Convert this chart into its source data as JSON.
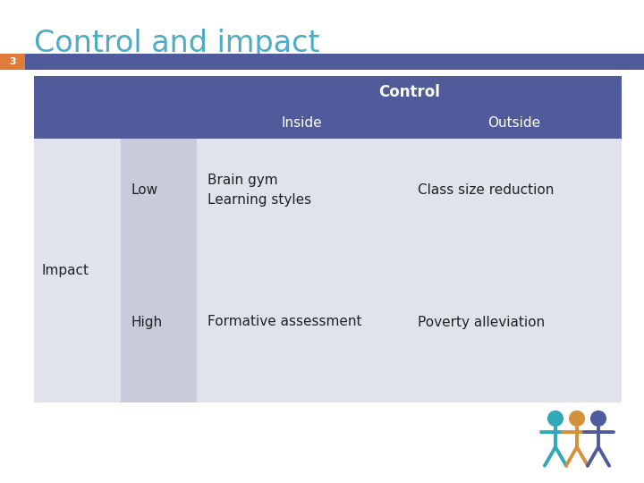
{
  "title": "Control and impact",
  "title_color": "#4BACC6",
  "slide_number": "3",
  "slide_number_bg": "#E07B39",
  "header_bar_color": "#4F5B9B",
  "header_text_color": "#FFFFFF",
  "cell_bg_light": "#E0E2EC",
  "cell_bg_mid": "#C8CBDA",
  "bg_color": "#FFFFFF",
  "table_structure": {
    "col2_label": "Control",
    "col2a_label": "Inside",
    "col2b_label": "Outside",
    "rows": [
      {
        "row_label": "",
        "col1": "Low",
        "col2a": "Brain gym\nLearning styles",
        "col2b": "Class size reduction"
      },
      {
        "row_label": "Impact",
        "col1": "High",
        "col2a": "Formative assessment",
        "col2b": "Poverty alleviation"
      }
    ]
  },
  "fig_colors": [
    "#2FA8B8",
    "#D4913A",
    "#4F5B9B"
  ],
  "font_family": "DejaVu Sans"
}
